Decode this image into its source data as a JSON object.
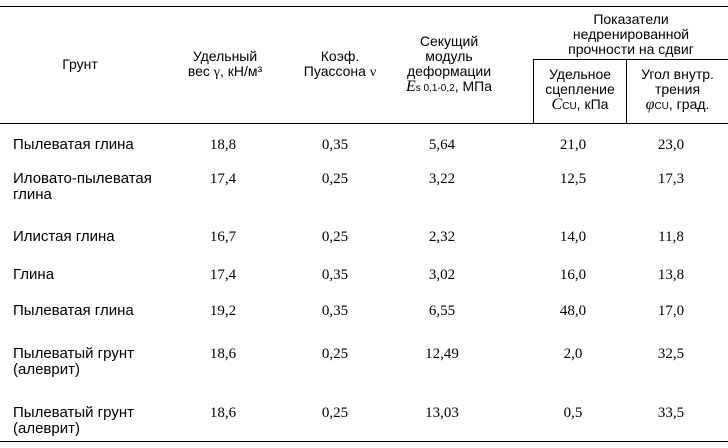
{
  "header": {
    "soil": "Грунт",
    "unit_weight_1": "Удельный",
    "unit_weight_2": "вес",
    "unit_weight_symbol": "γ",
    "unit_weight_unit": ", кН/м³",
    "poisson_1": "Коэф.",
    "poisson_2": "Пуассона",
    "poisson_symbol": "ν",
    "modulus_1": "Секущий",
    "modulus_2": "модуль",
    "modulus_3": "деформации",
    "modulus_symbol": "E",
    "modulus_sub": "s 0,1-0,2",
    "modulus_unit": ", МПа",
    "strength_1": "Показатели",
    "strength_2": "недренированной",
    "strength_3": "прочности на сдвиг",
    "cohesion_1": "Удельное",
    "cohesion_2": "сцепление",
    "cohesion_symbol": "C",
    "cohesion_sub": "CU",
    "cohesion_unit": ", кПа",
    "friction_1": "Угол внутр.",
    "friction_2": "трения",
    "friction_symbol": "φ",
    "friction_sub": "CU",
    "friction_unit": ", град."
  },
  "rows": [
    {
      "soil_1": "Пылеватая глина",
      "soil_2": "",
      "gamma": "18,8",
      "nu": "0,35",
      "E": "5,64",
      "C": "21,0",
      "phi": "23,0"
    },
    {
      "soil_1": "Иловато-пылеватая",
      "soil_2": "глина",
      "gamma": "17,4",
      "nu": "0,25",
      "E": "3,22",
      "C": "12,5",
      "phi": "17,3"
    },
    {
      "soil_1": "Илистая глина",
      "soil_2": "",
      "gamma": "16,7",
      "nu": "0,25",
      "E": "2,32",
      "C": "14,0",
      "phi": "11,8"
    },
    {
      "soil_1": "Глина",
      "soil_2": "",
      "gamma": "17,4",
      "nu": "0,35",
      "E": "3,02",
      "C": "16,0",
      "phi": "13,8"
    },
    {
      "soil_1": "Пылеватая глина",
      "soil_2": "",
      "gamma": "19,2",
      "nu": "0,35",
      "E": "6,55",
      "C": "48,0",
      "phi": "17,0"
    },
    {
      "soil_1": "Пылеватый грунт",
      "soil_2": "(алеврит)",
      "gamma": "18,6",
      "nu": "0,25",
      "E": "12,49",
      "C": "2,0",
      "phi": "32,5"
    },
    {
      "soil_1": "Пылеватый грунт",
      "soil_2": "(алеврит)",
      "gamma": "18,6",
      "nu": "0,25",
      "E": "13,03",
      "C": "0,5",
      "phi": "33,5"
    }
  ]
}
